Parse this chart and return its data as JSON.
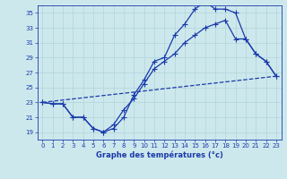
{
  "xlabel": "Graphe des températures (°c)",
  "xlim": [
    -0.5,
    23.5
  ],
  "ylim": [
    18,
    36
  ],
  "yticks": [
    19,
    21,
    23,
    25,
    27,
    29,
    31,
    33,
    35
  ],
  "xticks": [
    0,
    1,
    2,
    3,
    4,
    5,
    6,
    7,
    8,
    9,
    10,
    11,
    12,
    13,
    14,
    15,
    16,
    17,
    18,
    19,
    20,
    21,
    22,
    23
  ],
  "bg_color": "#cde8ec",
  "grid_color": "#b0d4da",
  "line_color": "#1a3aab",
  "line1_x": [
    0,
    1,
    2,
    3,
    4,
    5,
    6,
    7,
    8,
    9,
    10,
    11,
    12,
    13,
    14,
    15,
    16,
    17,
    18,
    19,
    20,
    21,
    22,
    23
  ],
  "line1_y": [
    23,
    22.8,
    22.8,
    21,
    21,
    19.5,
    19,
    19.5,
    21,
    24,
    26,
    28.5,
    29,
    32,
    33.5,
    35.5,
    36.5,
    35.5,
    35.5,
    35,
    31.5,
    29.5,
    28.5,
    26.5
  ],
  "line2_x": [
    0,
    1,
    2,
    3,
    4,
    5,
    6,
    7,
    8,
    9,
    10,
    11,
    12,
    13,
    14,
    15,
    16,
    17,
    18,
    19,
    20,
    21,
    22,
    23
  ],
  "line2_y": [
    23,
    22.8,
    22.8,
    21,
    21,
    19.5,
    19,
    20,
    22,
    23.5,
    25.5,
    27.5,
    28.5,
    29.5,
    31,
    32,
    33,
    33.5,
    34,
    31.5,
    31.5,
    29.5,
    28.5,
    26.5
  ],
  "line3_x": [
    0,
    23
  ],
  "line3_y": [
    23,
    26.5
  ],
  "marker_style": "+",
  "marker_size": 4,
  "linewidth": 0.9,
  "linewidth_dashed": 0.9
}
